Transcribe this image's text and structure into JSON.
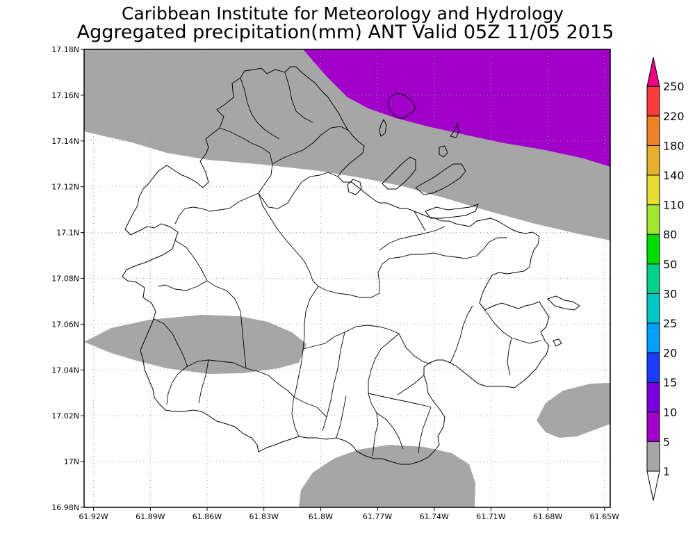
{
  "title": {
    "line1": "Caribbean Institute for Meteorology and Hydrology",
    "line2": "Aggregated precipitation(mm) ANT Valid 05Z 11/05 2015"
  },
  "colors": {
    "precip_1_5": "#a6a6a6",
    "precip_5_10": "#a000c8",
    "frame": "#000000",
    "land_outline": "#000000"
  },
  "map": {
    "region": "ANT",
    "lon_range": [
      -61.925,
      -61.647
    ],
    "lat_range": [
      16.98,
      17.18
    ],
    "x_ticks": [
      {
        "value": -61.92,
        "label": "61.92W"
      },
      {
        "value": -61.89,
        "label": "61.89W"
      },
      {
        "value": -61.86,
        "label": "61.86W"
      },
      {
        "value": -61.83,
        "label": "61.83W"
      },
      {
        "value": -61.8,
        "label": "61.8W"
      },
      {
        "value": -61.77,
        "label": "61.77W"
      },
      {
        "value": -61.74,
        "label": "61.74W"
      },
      {
        "value": -61.71,
        "label": "61.71W"
      },
      {
        "value": -61.68,
        "label": "61.68W"
      },
      {
        "value": -61.65,
        "label": "61.65W"
      }
    ],
    "y_ticks": [
      {
        "value": 17.18,
        "label": "17.18N"
      },
      {
        "value": 17.16,
        "label": "17.16N"
      },
      {
        "value": 17.14,
        "label": "17.14N"
      },
      {
        "value": 17.12,
        "label": "17.12N"
      },
      {
        "value": 17.1,
        "label": "17.1N"
      },
      {
        "value": 17.08,
        "label": "17.08N"
      },
      {
        "value": 17.06,
        "label": "17.06N"
      },
      {
        "value": 17.04,
        "label": "17.04N"
      },
      {
        "value": 17.02,
        "label": "17.02N"
      },
      {
        "value": 17.0,
        "label": "17N"
      },
      {
        "value": 16.98,
        "label": "16.98N"
      }
    ]
  },
  "legend": {
    "units": "mm",
    "bins": [
      {
        "label": "1",
        "color": "#a6a6a6"
      },
      {
        "label": "5",
        "color": "#a000c8"
      },
      {
        "label": "10",
        "color": "#7800dc"
      },
      {
        "label": "15",
        "color": "#1e3cff"
      },
      {
        "label": "20",
        "color": "#00a0ff"
      },
      {
        "label": "25",
        "color": "#00c8c8"
      },
      {
        "label": "30",
        "color": "#00d28c"
      },
      {
        "label": "50",
        "color": "#00dc00"
      },
      {
        "label": "80",
        "color": "#a0e632"
      },
      {
        "label": "110",
        "color": "#e6dc32"
      },
      {
        "label": "140",
        "color": "#e6af2d"
      },
      {
        "label": "180",
        "color": "#f08228"
      },
      {
        "label": "220",
        "color": "#fa3c3c"
      },
      {
        "label": "250",
        "color": "#f00082"
      }
    ],
    "top_arrow_color": "#f00082",
    "bottom_arrow_color": "#ffffff"
  }
}
